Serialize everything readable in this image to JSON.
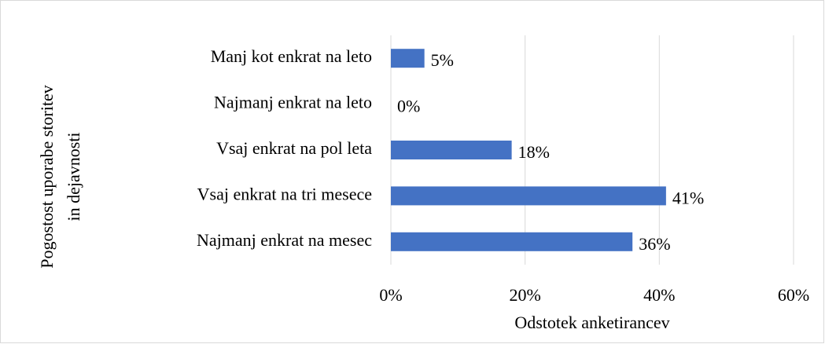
{
  "chart_data": {
    "type": "bar",
    "orientation": "horizontal",
    "y_label": [
      "Pogostost uporabe storitev",
      "in dejavnosti"
    ],
    "x_label": "Odstotek anketirancev",
    "categories": [
      "Manj kot enkrat na leto",
      "Najmanj enkrat na leto",
      "Vsaj enkrat na pol leta",
      "Vsaj enkrat na tri mesece",
      "Najmanj enkrat na mesec"
    ],
    "values": [
      5,
      0,
      18,
      41,
      36
    ],
    "value_labels": [
      "5%",
      "0%",
      "18%",
      "41%",
      "36%"
    ],
    "color": "#4472c4",
    "xlim": [
      0,
      60
    ],
    "xticks": [
      {
        "value": 0,
        "label": "0%"
      },
      {
        "value": 20,
        "label": "20%"
      },
      {
        "value": 40,
        "label": "40%"
      },
      {
        "value": 60,
        "label": "60%"
      }
    ],
    "grid": true
  }
}
